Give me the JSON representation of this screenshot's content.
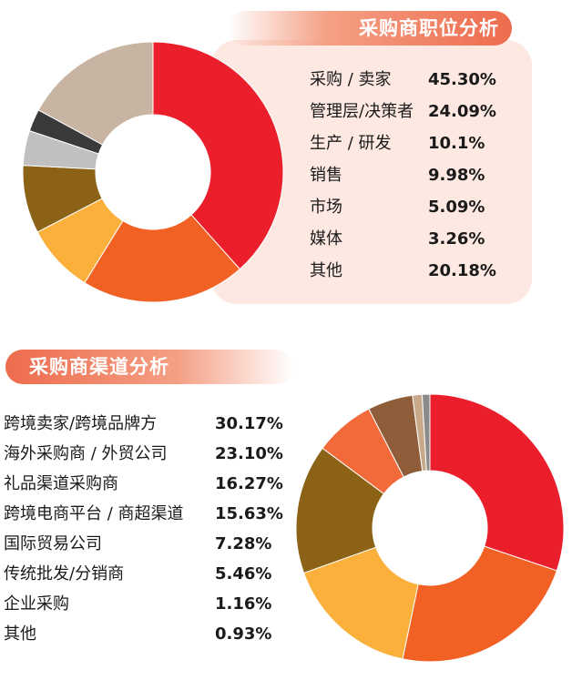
{
  "roles": {
    "title": "采购商职位分析",
    "items": [
      {
        "label": "采购 / 卖家",
        "pct": "45.30%"
      },
      {
        "label": "管理层/决策者",
        "pct": "24.09%"
      },
      {
        "label": "生产 / 研发",
        "pct": "10.1%"
      },
      {
        "label": "销售",
        "pct": "9.98%"
      },
      {
        "label": "市场",
        "pct": "5.09%"
      },
      {
        "label": "媒体",
        "pct": "3.26%"
      },
      {
        "label": "其他",
        "pct": "20.18%"
      }
    ]
  },
  "channels": {
    "title": "采购商渠道分析",
    "items": [
      {
        "label": "跨境卖家/跨境品牌方",
        "pct": "30.17%"
      },
      {
        "label": "海外采购商 / 外贸公司",
        "pct": "23.10%"
      },
      {
        "label": "礼品渠道采购商",
        "pct": "16.27%"
      },
      {
        "label": "跨境电商平台 / 商超渠道",
        "pct": "15.63%"
      },
      {
        "label": "国际贸易公司",
        "pct": "7.28%"
      },
      {
        "label": "传统批发/分销商",
        "pct": "5.46%"
      },
      {
        "label": "企业采购",
        "pct": "1.16%"
      },
      {
        "label": "其他",
        "pct": "0.93%"
      }
    ]
  },
  "chart_data": [
    {
      "type": "pie",
      "title": "采购商职位分析",
      "categories": [
        "采购 / 卖家",
        "管理层/决策者",
        "生产 / 研发",
        "销售",
        "市场",
        "媒体",
        "其他"
      ],
      "values": [
        45.3,
        24.09,
        10.1,
        9.98,
        5.09,
        3.26,
        20.18
      ],
      "colors": [
        "#ea1f2b",
        "#f26124",
        "#fbb03b",
        "#8b6216",
        "#c0c0c0",
        "#3a3a3a",
        "#c8b4a2"
      ]
    },
    {
      "type": "pie",
      "title": "采购商渠道分析",
      "categories": [
        "跨境卖家/跨境品牌方",
        "海外采购商 / 外贸公司",
        "礼品渠道采购商",
        "跨境电商平台 / 商超渠道",
        "国际贸易公司",
        "传统批发/分销商",
        "企业采购",
        "其他"
      ],
      "values": [
        30.17,
        23.1,
        16.27,
        15.63,
        7.28,
        5.46,
        1.16,
        0.93
      ],
      "colors": [
        "#ea1f2b",
        "#f26124",
        "#fbb03b",
        "#8b6216",
        "#f36a3a",
        "#8f5d39",
        "#c8a98a",
        "#8a8a8a"
      ]
    }
  ]
}
